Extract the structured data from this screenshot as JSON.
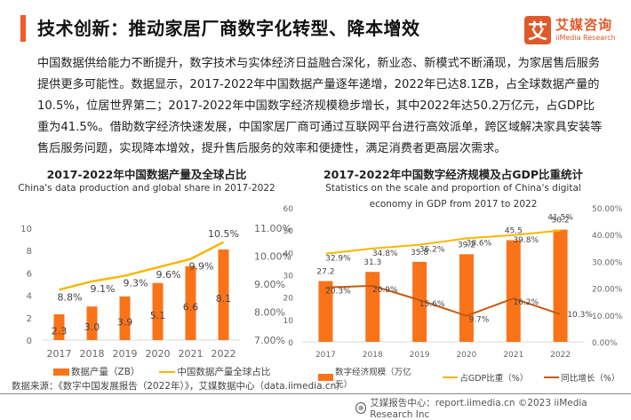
{
  "header": {
    "title": "技术创新：推动家居厂商数字化转型、降本增效",
    "logo_mark": "艾",
    "logo_cn": "艾媒咨询",
    "logo_en": "iiMedia Research"
  },
  "intro_text": "中国数据供给能力不断提升，数字技术与实体经济日益融合深化，新业态、新模式不断涌现，为家居售后服务提供更多可能性。数据显示，2017-2022年中国数据产量逐年递增，2022年已达8.1ZB，占全球数据产量的10.5%，位居世界第二；2017-2022年中国数字经济规模稳步增长，其中2022年达50.2万亿元，占GDP比重为41.5%。借助数字经济快速发展，中国家居厂商可通过互联网平台进行高效派单，跨区域解决家具安装等售后服务问题，实现降本增效，提升售后服务的效率和便捷性，满足消费者更高层次需求。",
  "colors": {
    "accent": "#f15a29",
    "bar": "#fa7319",
    "line_gold": "#f5b800",
    "line_brown": "#c55a11"
  },
  "chart_data": [
    {
      "type": "bar",
      "title": "2017-2022年中国数据产量及全球占比",
      "subtitle": "China's data production and global share in 2017-2022",
      "categories": [
        "2017",
        "2018",
        "2019",
        "2020",
        "2021",
        "2022"
      ],
      "series": [
        {
          "name": "数据产量（ZB）",
          "kind": "bar",
          "axis": "left",
          "values": [
            2.3,
            3.0,
            3.9,
            5.1,
            6.6,
            8.1
          ],
          "labels": [
            "2.3",
            "3.0",
            "3.9",
            "5.1",
            "6.6",
            "8.1"
          ]
        },
        {
          "name": "中国数据产量全球占比",
          "kind": "line",
          "axis": "right",
          "values": [
            8.8,
            9.1,
            9.3,
            9.6,
            9.9,
            10.5
          ],
          "labels": [
            "8.8%",
            "9.1%",
            "9.3%",
            "9.6%",
            "9.9%",
            "10.5%"
          ]
        }
      ],
      "left_axis": {
        "ylim": [
          0,
          10
        ],
        "ticks": [
          "0",
          "2",
          "4",
          "6",
          "8",
          "10"
        ]
      },
      "right_axis": {
        "ylim": [
          7,
          11
        ],
        "ticks": [
          "7.00%",
          "8.00%",
          "9.00%",
          "10.00%",
          "11.00%"
        ]
      },
      "legend": "bottom"
    },
    {
      "type": "bar",
      "title": "2017-2022年中国数字经济规模及占GDP比重统计",
      "subtitle": "Statistics on the scale and proportion of China's digital economy in GDP from 2017 to 2022",
      "categories": [
        "2017",
        "2018",
        "2019",
        "2020",
        "2021",
        "2022"
      ],
      "series": [
        {
          "name": "数字经济规模（万亿元）",
          "kind": "bar",
          "axis": "left",
          "values": [
            27.2,
            31.3,
            35.8,
            39.2,
            45.5,
            50.2
          ],
          "labels": [
            "27.2",
            "31.3",
            "35.8",
            "39.2",
            "45.5",
            "50.2"
          ]
        },
        {
          "name": "占GDP比重（%）",
          "kind": "line",
          "axis": "right",
          "values": [
            32.9,
            34.8,
            36.2,
            38.6,
            39.8,
            41.5
          ],
          "labels": [
            "32.9%",
            "34.8%",
            "36.2%",
            "38.6%",
            "39.8%",
            "41.5%"
          ]
        },
        {
          "name": "同比增长（%）",
          "kind": "line",
          "axis": "right",
          "values": [
            20.3,
            20.9,
            15.6,
            9.7,
            16.2,
            10.3
          ],
          "labels": [
            "20.3%",
            "20.9%",
            "15.6%",
            "9.7%",
            "16.2%",
            "10.3%"
          ]
        }
      ],
      "left_axis": {
        "ylim": [
          0,
          60
        ],
        "ticks": [
          "0",
          "10",
          "20",
          "30",
          "40",
          "50",
          "60"
        ]
      },
      "right_axis": {
        "ylim": [
          0,
          50
        ],
        "ticks": [
          "0.00%",
          "10.00%",
          "20.00%",
          "30.00%",
          "40.00%",
          "50.00%"
        ]
      },
      "legend": "bottom"
    }
  ],
  "source": "数据来源：《数字中国发展报告（2022年）》，艾媒数据中心（data.iimedia.cn）",
  "footer": {
    "icon": "globe-icon",
    "text": "艾媒报告中心：report.iimedia.cn  ©2023  iiMedia Research  Inc"
  }
}
